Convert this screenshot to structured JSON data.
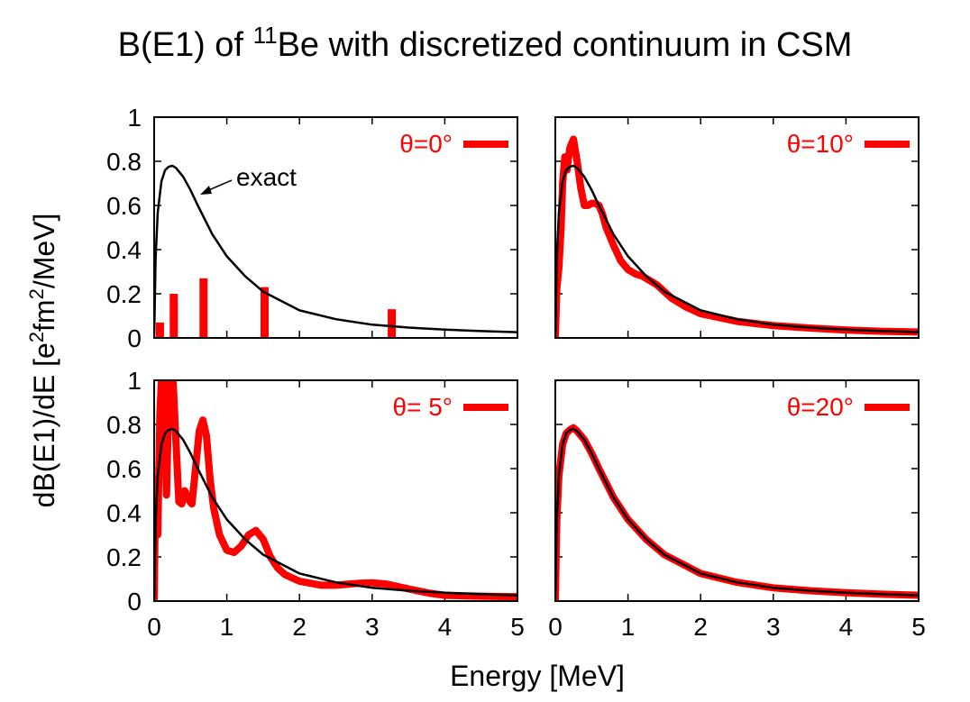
{
  "figure": {
    "title_prefix": "B(E1) of ",
    "title_mass": "11",
    "title_suffix": "Be with discretized continuum in CSM",
    "xlabel": "Energy  [MeV]",
    "ylabel_part1": "dB(E1)/dE  [e",
    "ylabel_sup1": "2",
    "ylabel_part2": "fm",
    "ylabel_sup2": "2",
    "ylabel_part3": "/MeV]",
    "annotation": "exact"
  },
  "colors": {
    "exact": "#000000",
    "csm": "#ff0000",
    "frame": "#000000"
  },
  "chart_data": [
    {
      "type": "line",
      "panel": "top-left",
      "legend_label": "θ=0°",
      "legend_placement": "top-right",
      "xlim": [
        0,
        5
      ],
      "ylim": [
        0,
        1
      ],
      "xticks": [
        0,
        1,
        2,
        3,
        4,
        5
      ],
      "yticks": [
        0,
        0.2,
        0.4,
        0.6,
        0.8,
        1
      ],
      "yticklabels": [
        "0",
        "0.2",
        "0.4",
        "0.6",
        "0.8",
        "1"
      ],
      "show_xticklabels": false,
      "show_yticklabels": true,
      "series": [
        {
          "name": "exact",
          "color": "#000000",
          "style": "line",
          "x": [
            0,
            0.02,
            0.05,
            0.1,
            0.15,
            0.2,
            0.25,
            0.3,
            0.4,
            0.5,
            0.6,
            0.8,
            1.0,
            1.25,
            1.5,
            2.0,
            2.5,
            3.0,
            3.5,
            4.0,
            4.5,
            5.0
          ],
          "y": [
            0,
            0.36,
            0.57,
            0.71,
            0.76,
            0.775,
            0.78,
            0.77,
            0.73,
            0.67,
            0.6,
            0.47,
            0.37,
            0.28,
            0.21,
            0.125,
            0.085,
            0.06,
            0.047,
            0.038,
            0.031,
            0.026
          ]
        },
        {
          "name": "θ=0°",
          "color": "#ff0000",
          "style": "bars",
          "x": [
            0.08,
            0.27,
            0.68,
            1.52,
            3.27
          ],
          "y": [
            0.07,
            0.2,
            0.27,
            0.23,
            0.13
          ]
        }
      ]
    },
    {
      "type": "line",
      "panel": "top-right",
      "legend_label": "θ=10°",
      "legend_placement": "top-right",
      "xlim": [
        0,
        5
      ],
      "ylim": [
        0,
        1
      ],
      "xticks": [
        0,
        1,
        2,
        3,
        4,
        5
      ],
      "yticks": [
        0,
        0.2,
        0.4,
        0.6,
        0.8,
        1
      ],
      "show_xticklabels": false,
      "show_yticklabels": false,
      "series": [
        {
          "name": "θ=10°",
          "color": "#ff0000",
          "style": "line",
          "x": [
            0,
            0.02,
            0.05,
            0.08,
            0.1,
            0.13,
            0.16,
            0.2,
            0.25,
            0.3,
            0.35,
            0.4,
            0.45,
            0.5,
            0.55,
            0.6,
            0.65,
            0.7,
            0.8,
            0.9,
            1.0,
            1.1,
            1.2,
            1.3,
            1.4,
            1.5,
            1.6,
            1.8,
            2.0,
            2.5,
            3.0,
            3.5,
            4.0,
            4.5,
            5.0
          ],
          "y": [
            0,
            0.22,
            0.32,
            0.5,
            0.7,
            0.82,
            0.76,
            0.86,
            0.9,
            0.8,
            0.68,
            0.6,
            0.6,
            0.61,
            0.61,
            0.6,
            0.56,
            0.5,
            0.42,
            0.35,
            0.31,
            0.29,
            0.28,
            0.26,
            0.24,
            0.21,
            0.18,
            0.14,
            0.11,
            0.075,
            0.056,
            0.045,
            0.036,
            0.03,
            0.027
          ]
        },
        {
          "name": "exact",
          "color": "#000000",
          "style": "line",
          "x": [
            0,
            0.02,
            0.05,
            0.1,
            0.15,
            0.2,
            0.25,
            0.3,
            0.4,
            0.5,
            0.6,
            0.8,
            1.0,
            1.25,
            1.5,
            2.0,
            2.5,
            3.0,
            3.5,
            4.0,
            4.5,
            5.0
          ],
          "y": [
            0,
            0.36,
            0.57,
            0.71,
            0.76,
            0.775,
            0.78,
            0.77,
            0.73,
            0.67,
            0.6,
            0.47,
            0.37,
            0.28,
            0.21,
            0.125,
            0.085,
            0.06,
            0.047,
            0.038,
            0.031,
            0.026
          ]
        }
      ]
    },
    {
      "type": "line",
      "panel": "bottom-left",
      "legend_label": "θ= 5°",
      "legend_placement": "top-right",
      "xlim": [
        0,
        5
      ],
      "ylim": [
        0,
        1
      ],
      "xticks": [
        0,
        1,
        2,
        3,
        4,
        5
      ],
      "xticklabels": [
        "0",
        "1",
        "2",
        "3",
        "4",
        "5"
      ],
      "yticks": [
        0,
        0.2,
        0.4,
        0.6,
        0.8,
        1
      ],
      "yticklabels": [
        "0",
        "0.2",
        "0.4",
        "0.6",
        "0.8",
        "1"
      ],
      "show_xticklabels": true,
      "show_yticklabels": true,
      "series": [
        {
          "name": "θ= 5°",
          "color": "#ff0000",
          "style": "line",
          "x": [
            0,
            0.02,
            0.05,
            0.08,
            0.1,
            0.13,
            0.17,
            0.2,
            0.23,
            0.26,
            0.3,
            0.34,
            0.38,
            0.42,
            0.47,
            0.52,
            0.57,
            0.62,
            0.67,
            0.72,
            0.77,
            0.82,
            0.9,
            1.0,
            1.1,
            1.2,
            1.3,
            1.4,
            1.5,
            1.6,
            1.7,
            1.8,
            2.0,
            2.3,
            2.5,
            2.8,
            3.0,
            3.2,
            3.5,
            3.8,
            4.0,
            4.5,
            5.0
          ],
          "y": [
            0,
            0.55,
            0.3,
            0.85,
            1.0,
            1.0,
            0.48,
            0.9,
            1.0,
            1.0,
            0.72,
            0.45,
            0.44,
            0.5,
            0.46,
            0.44,
            0.6,
            0.77,
            0.82,
            0.75,
            0.55,
            0.42,
            0.3,
            0.23,
            0.22,
            0.25,
            0.3,
            0.32,
            0.28,
            0.2,
            0.15,
            0.12,
            0.09,
            0.072,
            0.072,
            0.08,
            0.083,
            0.077,
            0.055,
            0.035,
            0.026,
            0.022,
            0.02
          ]
        },
        {
          "name": "exact",
          "color": "#000000",
          "style": "line",
          "x": [
            0,
            0.02,
            0.05,
            0.1,
            0.15,
            0.2,
            0.25,
            0.3,
            0.4,
            0.5,
            0.6,
            0.8,
            1.0,
            1.25,
            1.5,
            2.0,
            2.5,
            3.0,
            3.5,
            4.0,
            4.5,
            5.0
          ],
          "y": [
            0,
            0.36,
            0.57,
            0.71,
            0.76,
            0.775,
            0.78,
            0.77,
            0.73,
            0.67,
            0.6,
            0.47,
            0.37,
            0.28,
            0.21,
            0.125,
            0.085,
            0.06,
            0.047,
            0.038,
            0.031,
            0.026
          ]
        }
      ]
    },
    {
      "type": "line",
      "panel": "bottom-right",
      "legend_label": "θ=20°",
      "legend_placement": "top-right",
      "xlim": [
        0,
        5
      ],
      "ylim": [
        0,
        1
      ],
      "xticks": [
        0,
        1,
        2,
        3,
        4,
        5
      ],
      "xticklabels": [
        "0",
        "1",
        "2",
        "3",
        "4",
        "5"
      ],
      "yticks": [
        0,
        0.2,
        0.4,
        0.6,
        0.8,
        1
      ],
      "show_xticklabels": true,
      "show_yticklabels": false,
      "series": [
        {
          "name": "θ=20°",
          "color": "#ff0000",
          "style": "line",
          "x": [
            0,
            0.02,
            0.05,
            0.1,
            0.15,
            0.2,
            0.25,
            0.3,
            0.4,
            0.5,
            0.6,
            0.8,
            1.0,
            1.25,
            1.5,
            2.0,
            2.5,
            3.0,
            3.5,
            4.0,
            4.5,
            5.0
          ],
          "y": [
            0,
            0.36,
            0.57,
            0.71,
            0.76,
            0.775,
            0.785,
            0.77,
            0.73,
            0.67,
            0.6,
            0.47,
            0.37,
            0.28,
            0.21,
            0.125,
            0.085,
            0.06,
            0.047,
            0.038,
            0.031,
            0.026
          ]
        },
        {
          "name": "exact",
          "color": "#000000",
          "style": "line",
          "x": [
            0,
            0.02,
            0.05,
            0.1,
            0.15,
            0.2,
            0.25,
            0.3,
            0.4,
            0.5,
            0.6,
            0.8,
            1.0,
            1.25,
            1.5,
            2.0,
            2.5,
            3.0,
            3.5,
            4.0,
            4.5,
            5.0
          ],
          "y": [
            0,
            0.36,
            0.57,
            0.71,
            0.76,
            0.775,
            0.78,
            0.77,
            0.73,
            0.67,
            0.6,
            0.47,
            0.37,
            0.28,
            0.21,
            0.125,
            0.085,
            0.06,
            0.047,
            0.038,
            0.031,
            0.026
          ]
        }
      ]
    }
  ]
}
